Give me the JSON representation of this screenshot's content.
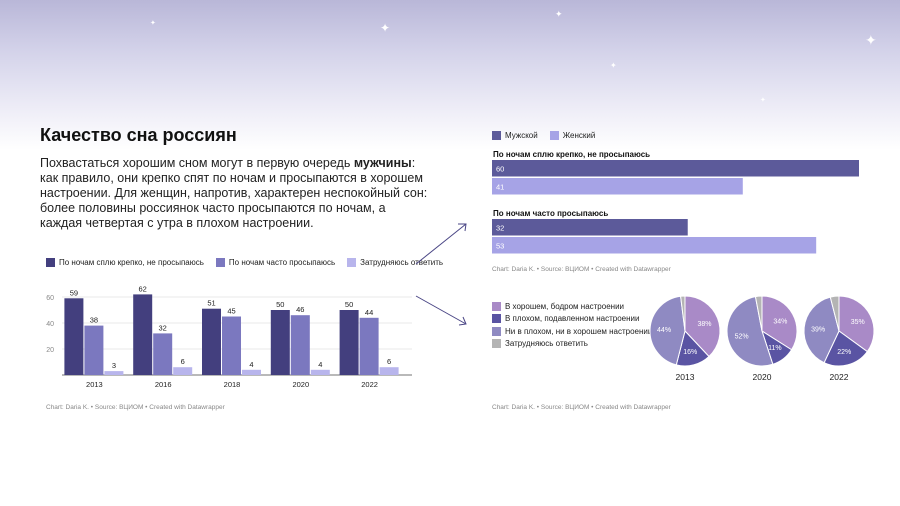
{
  "title": "Качество сна россиян",
  "intro": {
    "part1": "Похвастаться хорошим сном могут в первую очередь ",
    "bold": "мужчины",
    "part2": ": как правило, они крепко спят по ночам и просыпаются в хорошем настроении. Для женщин, напротив, характерен неспокойный сон: более половины россиянок часто просыпаются по ночам, а каждая четвертая с утра в плохом настроении."
  },
  "colors": {
    "dark": "#433f7e",
    "mid": "#7b78bf",
    "light": "#b8b5ec",
    "male": "#5c5a9a",
    "female": "#a6a3e6",
    "pie_good": "#a98ac7",
    "pie_bad": "#5a54a3",
    "pie_neutral": "#8f8ac2",
    "pie_unsure": "#b4b4b4"
  },
  "left_footer": "Chart: Daria K. • Source: ВЦИОМ • Created with Datawrapper",
  "right_footer": "Chart: Daria K. • Source: ВЦИОМ • Created with Datawrapper",
  "chart_data": [
    {
      "type": "bar",
      "categories": [
        "2013",
        "2016",
        "2018",
        "2020",
        "2022"
      ],
      "series": [
        {
          "name": "По ночам сплю крепко, не просыпаюсь",
          "values": [
            59,
            62,
            51,
            50,
            50
          ]
        },
        {
          "name": "По ночам часто просыпаюсь",
          "values": [
            38,
            32,
            45,
            46,
            44
          ]
        },
        {
          "name": "Затрудняюсь ответить",
          "values": [
            3,
            6,
            4,
            4,
            6
          ]
        }
      ],
      "yticks": [
        "20",
        "40",
        "60"
      ],
      "ylim": [
        0,
        70
      ],
      "grid": true,
      "legend": "top-left"
    },
    {
      "type": "bar",
      "orientation": "horizontal",
      "legend_entries": [
        "Мужской",
        "Женский"
      ],
      "groups": [
        {
          "label": "По ночам сплю крепко, не просыпаюсь",
          "values": [
            60,
            41
          ]
        },
        {
          "label": "По ночам часто просыпаюсь",
          "values": [
            32,
            53
          ]
        }
      ],
      "xlim": [
        0,
        60
      ]
    },
    {
      "type": "pie",
      "legend_entries": [
        "В хорошем, бодром настроении",
        "В плохом, подавленном настроении",
        "Ни в плохом, ни в хорошем настроении",
        "Затрудняюсь ответить"
      ],
      "pies": [
        {
          "year": "2013",
          "values": [
            38,
            16,
            44,
            2
          ],
          "labels": [
            "38%",
            "16%",
            "44%",
            ""
          ]
        },
        {
          "year": "2020",
          "values": [
            34,
            11,
            52,
            3
          ],
          "labels": [
            "34%",
            "11%",
            "52%",
            ""
          ]
        },
        {
          "year": "2022",
          "values": [
            35,
            22,
            39,
            4
          ],
          "labels": [
            "35%",
            "22%",
            "39%",
            ""
          ]
        }
      ]
    }
  ]
}
